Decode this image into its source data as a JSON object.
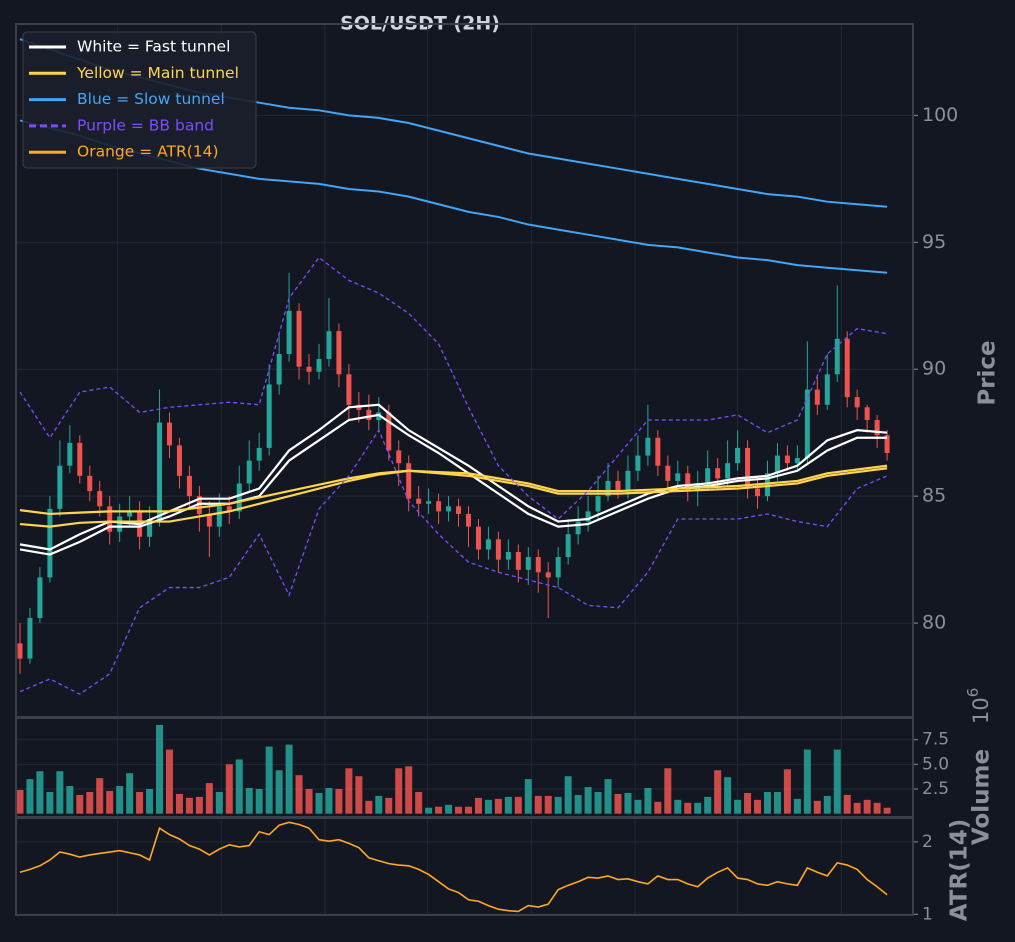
{
  "chart_data": [
    {
      "type": "candlestick",
      "title": "SOL/USDT (2H)",
      "ylabel": "Price",
      "ylim": [
        76.3,
        103.6
      ],
      "yticks": [
        80,
        85,
        90,
        95,
        100
      ],
      "xlim": [
        -0.4,
        89.6
      ],
      "xticks": [
        9.8,
        20.2,
        30.6,
        40.9,
        51.3,
        61.7,
        72.0,
        82.4
      ],
      "grid": true,
      "legend": "upper left",
      "up_color": "#26a69a",
      "down_color": "#ef5350",
      "open": [
        79.2,
        78.6,
        80.2,
        81.8,
        84.5,
        86.2,
        87.1,
        85.8,
        85.2,
        84.6,
        83.6,
        84.2,
        84.4,
        83.4,
        84.1,
        87.9,
        87.0,
        85.8,
        85.0,
        84.3,
        83.8,
        84.6,
        84.4,
        85.5,
        86.4,
        86.9,
        89.4,
        90.6,
        92.3,
        90.1,
        89.9,
        90.4,
        91.5,
        89.8,
        88.6,
        88.4,
        88.0,
        88.3,
        86.8,
        86.3,
        84.9,
        84.7,
        84.8,
        84.4,
        84.6,
        84.3,
        83.8,
        82.9,
        83.3,
        82.5,
        82.8,
        82.1,
        82.6,
        82.0,
        81.8,
        82.6,
        83.5,
        84.0,
        84.4,
        85.0,
        85.6,
        85.2,
        86.0,
        86.6,
        87.3,
        86.2,
        85.6,
        85.9,
        85.2,
        85.5,
        86.1,
        85.7,
        86.3,
        86.9,
        85.3,
        85.0,
        85.9,
        86.6,
        86.3,
        86.5,
        89.2,
        88.6,
        89.8,
        91.2,
        88.9,
        88.5,
        88.0,
        87.4
      ],
      "high": [
        80.0,
        80.6,
        82.2,
        85.0,
        87.2,
        87.8,
        87.4,
        86.2,
        85.6,
        85.0,
        84.7,
        85.0,
        84.8,
        84.6,
        89.2,
        88.3,
        87.3,
        86.2,
        85.4,
        84.8,
        85.1,
        85.0,
        86.2,
        87.2,
        87.5,
        90.2,
        91.4,
        93.8,
        92.6,
        90.6,
        91.0,
        92.8,
        91.8,
        90.2,
        89.1,
        89.0,
        88.9,
        88.6,
        87.2,
        86.6,
        85.4,
        85.3,
        85.1,
        85.0,
        84.9,
        84.6,
        84.1,
        83.8,
        83.6,
        83.3,
        83.1,
        83.0,
        82.9,
        82.4,
        83.0,
        84.1,
        84.6,
        85.0,
        85.8,
        86.3,
        86.0,
        86.6,
        87.4,
        88.6,
        87.6,
        86.6,
        86.4,
        86.2,
        86.0,
        86.8,
        86.5,
        87.2,
        87.6,
        87.2,
        85.8,
        86.4,
        87.1,
        87.0,
        87.0,
        91.1,
        89.8,
        90.6,
        93.3,
        91.5,
        89.2,
        88.6,
        88.2,
        87.6
      ],
      "low": [
        78.0,
        78.4,
        80.0,
        81.6,
        84.2,
        85.9,
        85.5,
        84.8,
        84.2,
        83.1,
        83.2,
        83.8,
        82.9,
        83.0,
        83.8,
        86.5,
        85.3,
        84.5,
        83.6,
        82.6,
        83.4,
        83.9,
        84.1,
        85.2,
        86.0,
        86.6,
        89.0,
        90.3,
        89.6,
        89.4,
        89.6,
        90.1,
        89.3,
        88.0,
        87.9,
        87.6,
        87.5,
        86.4,
        85.4,
        84.4,
        84.2,
        84.3,
        83.9,
        84.0,
        83.8,
        83.0,
        82.5,
        82.5,
        82.0,
        82.1,
        81.6,
        81.5,
        81.2,
        80.2,
        81.4,
        82.3,
        83.1,
        83.6,
        84.1,
        84.8,
        84.9,
        84.9,
        85.6,
        86.2,
        85.8,
        85.1,
        85.2,
        84.8,
        84.6,
        85.2,
        85.3,
        85.4,
        86.0,
        84.9,
        84.5,
        84.8,
        85.6,
        86.0,
        86.0,
        86.3,
        88.2,
        88.4,
        89.5,
        88.5,
        88.0,
        87.5,
        86.9,
        86.4
      ],
      "close": [
        78.6,
        80.2,
        81.8,
        84.5,
        86.2,
        87.1,
        85.8,
        85.2,
        84.6,
        83.6,
        84.2,
        84.4,
        83.4,
        84.1,
        87.9,
        87.0,
        85.8,
        85.0,
        84.3,
        83.8,
        84.6,
        84.4,
        85.5,
        86.4,
        86.9,
        89.4,
        90.6,
        92.3,
        90.1,
        89.9,
        90.4,
        91.5,
        89.8,
        88.6,
        88.4,
        88.0,
        88.3,
        86.8,
        86.3,
        84.9,
        84.7,
        84.8,
        84.4,
        84.6,
        84.3,
        83.8,
        82.9,
        83.3,
        82.5,
        82.8,
        82.1,
        82.6,
        82.0,
        81.8,
        82.6,
        83.5,
        84.0,
        84.4,
        85.0,
        85.6,
        85.2,
        86.0,
        86.6,
        87.3,
        86.2,
        85.6,
        85.9,
        85.2,
        85.5,
        86.1,
        85.7,
        86.3,
        86.9,
        85.3,
        85.0,
        85.9,
        86.6,
        86.3,
        86.5,
        89.2,
        88.6,
        89.8,
        91.2,
        88.9,
        88.5,
        88.0,
        87.4,
        86.7
      ],
      "line_x": [
        0,
        3,
        6,
        9,
        12,
        15,
        18,
        21,
        24,
        27,
        30,
        33,
        36,
        39,
        42,
        45,
        48,
        51,
        54,
        57,
        60,
        63,
        66,
        69,
        72,
        75,
        78,
        81,
        84,
        87
      ],
      "lines": [
        {
          "name": "White = Fast tunnel",
          "color": "#ffffff",
          "dash": false,
          "upper": [
            83.1,
            82.9,
            83.5,
            84.0,
            83.9,
            84.4,
            84.9,
            84.9,
            85.3,
            86.8,
            87.6,
            88.5,
            88.6,
            87.6,
            86.9,
            86.2,
            85.4,
            84.6,
            84.0,
            84.1,
            84.6,
            85.1,
            85.4,
            85.5,
            85.7,
            85.8,
            86.2,
            87.2,
            87.6,
            87.5
          ],
          "lower": [
            82.9,
            82.7,
            83.2,
            83.8,
            83.8,
            84.2,
            84.7,
            84.7,
            85.0,
            86.4,
            87.2,
            88.0,
            88.2,
            87.4,
            86.7,
            85.9,
            85.1,
            84.3,
            83.8,
            83.9,
            84.4,
            84.9,
            85.3,
            85.4,
            85.6,
            85.7,
            86.0,
            86.8,
            87.3,
            87.3
          ]
        },
        {
          "name": "Yellow = Main tunnel",
          "color": "#ffd54f",
          "dash": false,
          "upper": [
            84.45,
            84.3,
            84.35,
            84.4,
            84.4,
            84.4,
            84.55,
            84.7,
            84.95,
            85.2,
            85.45,
            85.7,
            85.9,
            86.0,
            85.95,
            85.9,
            85.7,
            85.5,
            85.2,
            85.2,
            85.2,
            85.25,
            85.3,
            85.35,
            85.4,
            85.5,
            85.6,
            85.9,
            86.05,
            86.2
          ],
          "lower": [
            83.9,
            83.8,
            83.95,
            84.0,
            84.0,
            84.0,
            84.2,
            84.4,
            84.7,
            85.0,
            85.3,
            85.6,
            85.85,
            86.0,
            85.9,
            85.8,
            85.6,
            85.4,
            85.1,
            85.1,
            85.1,
            85.15,
            85.2,
            85.25,
            85.3,
            85.4,
            85.5,
            85.8,
            85.95,
            86.1
          ]
        },
        {
          "name": "Blue = Slow tunnel",
          "color": "#42a5f5",
          "dash": false,
          "upper": [
            103.0,
            102.6,
            102.2,
            101.8,
            101.5,
            101.2,
            100.9,
            100.7,
            100.5,
            100.3,
            100.2,
            100.0,
            99.9,
            99.7,
            99.4,
            99.1,
            98.8,
            98.5,
            98.3,
            98.1,
            97.9,
            97.7,
            97.5,
            97.3,
            97.1,
            96.9,
            96.8,
            96.6,
            96.5,
            96.4
          ],
          "lower": [
            99.8,
            99.5,
            99.2,
            98.8,
            98.5,
            98.2,
            97.9,
            97.7,
            97.5,
            97.4,
            97.3,
            97.1,
            97.0,
            96.8,
            96.5,
            96.2,
            96.0,
            95.7,
            95.5,
            95.3,
            95.1,
            94.9,
            94.8,
            94.6,
            94.4,
            94.3,
            94.1,
            94.0,
            93.9,
            93.8
          ]
        },
        {
          "name": "Purple = BB band",
          "color": "#7c4dff",
          "dash": true,
          "upper": [
            89.1,
            87.3,
            89.1,
            89.3,
            88.3,
            88.5,
            88.6,
            88.7,
            88.6,
            92.8,
            94.4,
            93.5,
            93.0,
            92.2,
            91.0,
            88.5,
            86.2,
            85.0,
            84.1,
            85.2,
            86.6,
            88.0,
            88.0,
            88.0,
            88.2,
            87.5,
            88.0,
            90.6,
            91.6,
            91.4
          ],
          "lower": [
            77.3,
            77.8,
            77.2,
            78.0,
            80.6,
            81.4,
            81.4,
            81.8,
            83.5,
            81.1,
            84.5,
            85.8,
            87.6,
            84.8,
            83.5,
            82.4,
            82.0,
            81.7,
            81.4,
            80.7,
            80.6,
            82.0,
            84.1,
            84.1,
            84.1,
            84.3,
            84.0,
            83.8,
            85.3,
            85.8
          ]
        }
      ]
    },
    {
      "type": "bar",
      "ylabel": "Volume",
      "offset_base": "10",
      "offset_exponent": "6",
      "ylim": [
        -0.34,
        9.7
      ],
      "yticks": [
        2.5,
        {
          "value": 5,
          "label": "5.0"
        },
        7.5
      ],
      "grid": true,
      "values": [
        2.4,
        3.5,
        4.3,
        2.2,
        4.3,
        2.8,
        1.9,
        2.2,
        3.6,
        2.3,
        2.8,
        4.1,
        2.2,
        2.5,
        9.0,
        6.5,
        2.0,
        1.6,
        1.7,
        3.1,
        2.2,
        5.0,
        5.5,
        2.6,
        2.5,
        6.8,
        4.4,
        7.0,
        3.9,
        2.5,
        2.1,
        2.6,
        2.5,
        4.6,
        3.8,
        1.3,
        1.8,
        1.6,
        4.6,
        4.8,
        2.2,
        0.6,
        0.7,
        0.9,
        0.7,
        0.7,
        1.6,
        1.4,
        1.5,
        1.7,
        1.7,
        3.5,
        1.8,
        1.8,
        1.7,
        3.8,
        1.9,
        2.7,
        2.2,
        3.5,
        2.0,
        2.1,
        1.4,
        2.6,
        1.2,
        4.6,
        1.4,
        1.1,
        1.1,
        1.7,
        4.4,
        3.7,
        1.4,
        2.1,
        1.4,
        2.2,
        2.2,
        4.5,
        1.5,
        6.5,
        1.3,
        1.8,
        6.5,
        1.9,
        1.1,
        1.4,
        1.1,
        0.6
      ]
    },
    {
      "type": "line",
      "ylabel": "ATR(14)",
      "name": "Orange = ATR(14)",
      "color": "#ffa726",
      "ylim": [
        0.99,
        2.33
      ],
      "yticks": [
        1,
        2
      ],
      "grid": true,
      "values": [
        1.58,
        1.62,
        1.67,
        1.75,
        1.86,
        1.83,
        1.79,
        1.82,
        1.84,
        1.86,
        1.88,
        1.85,
        1.82,
        1.75,
        2.19,
        2.1,
        2.04,
        1.95,
        1.9,
        1.82,
        1.9,
        1.96,
        1.93,
        1.95,
        2.14,
        2.1,
        2.23,
        2.27,
        2.24,
        2.19,
        2.03,
        2.01,
        2.03,
        1.98,
        1.92,
        1.78,
        1.74,
        1.7,
        1.68,
        1.67,
        1.62,
        1.55,
        1.45,
        1.35,
        1.3,
        1.2,
        1.18,
        1.12,
        1.07,
        1.05,
        1.04,
        1.12,
        1.1,
        1.14,
        1.34,
        1.4,
        1.45,
        1.51,
        1.5,
        1.53,
        1.48,
        1.49,
        1.45,
        1.42,
        1.53,
        1.48,
        1.48,
        1.42,
        1.38,
        1.5,
        1.58,
        1.64,
        1.5,
        1.48,
        1.42,
        1.4,
        1.45,
        1.42,
        1.4,
        1.64,
        1.58,
        1.53,
        1.71,
        1.68,
        1.62,
        1.48,
        1.38,
        1.27
      ]
    }
  ]
}
